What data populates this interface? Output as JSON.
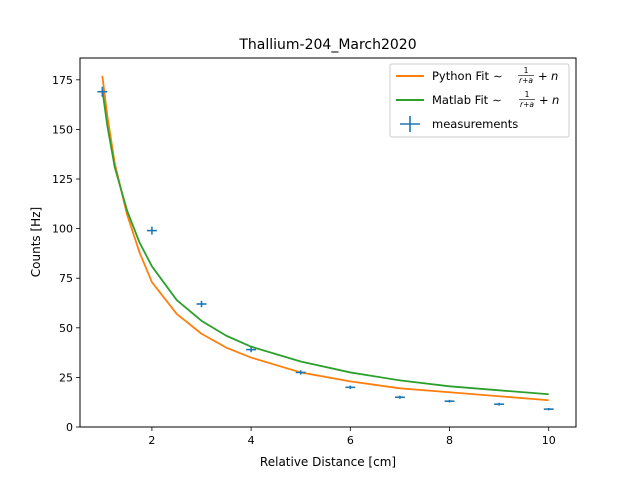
{
  "chart_data": {
    "type": "scatter",
    "title": "Thallium-204_March2020",
    "xlabel": "Relative Distance [cm]",
    "ylabel": "Counts [Hz]",
    "xlim": [
      0.55,
      10.55
    ],
    "ylim": [
      0,
      186
    ],
    "x_ticks": [
      2,
      4,
      6,
      8,
      10
    ],
    "y_ticks": [
      0,
      25,
      50,
      75,
      100,
      125,
      150,
      175
    ],
    "grid": false,
    "legend_position": "top-right",
    "series": [
      {
        "name": "Python Fit",
        "kind": "fit",
        "model": "1/(r+a) + n",
        "color": "#ff7f0e",
        "x": [
          1,
          1.1,
          1.25,
          1.5,
          1.75,
          2,
          2.5,
          3,
          3.5,
          4,
          5,
          6,
          7,
          8,
          9,
          10
        ],
        "y": [
          177,
          157,
          133,
          107,
          88,
          73,
          57,
          47,
          40,
          35,
          27.5,
          23,
          19.5,
          17.5,
          15.5,
          13.5
        ]
      },
      {
        "name": "Matlab Fit",
        "kind": "fit",
        "model": "1/(r+a) + n",
        "color": "#2ca02c",
        "x": [
          1,
          1.1,
          1.25,
          1.5,
          1.75,
          2,
          2.5,
          3,
          3.5,
          4,
          5,
          6,
          7,
          8,
          9,
          10
        ],
        "y": [
          170,
          152,
          131,
          109,
          93,
          81,
          64,
          53.5,
          46,
          40.5,
          33,
          27.5,
          23.5,
          20.5,
          18.5,
          16.5
        ]
      },
      {
        "name": "measurements",
        "kind": "errorbar",
        "color": "#1f77b4",
        "x": [
          1,
          2,
          3,
          4,
          5,
          6,
          7,
          8,
          9,
          10
        ],
        "y": [
          169,
          99,
          62,
          39,
          27.5,
          20,
          15,
          13,
          11.5,
          9
        ],
        "xerr": 0.1,
        "yerr": [
          2.5,
          2,
          1.6,
          1.3,
          1.1,
          0.9,
          0.8,
          0.7,
          0.7,
          0.6
        ]
      }
    ],
    "legend_labels": {
      "python": "Python Fit",
      "matlab": "Matlab Fit",
      "measurements": "measurements"
    }
  }
}
